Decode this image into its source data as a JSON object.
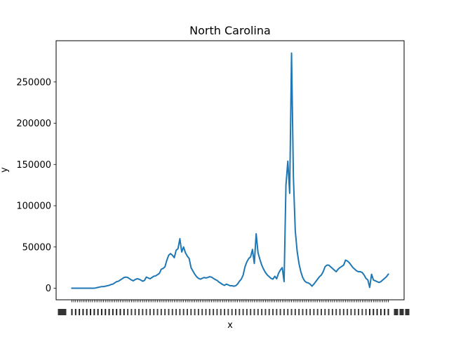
{
  "chart_data": {
    "type": "line",
    "title": "North Carolina",
    "xlabel": "x",
    "ylabel": "y",
    "ylim": [
      -14000,
      300000
    ],
    "yticks": [
      0,
      50000,
      100000,
      150000,
      200000,
      250000
    ],
    "ytick_labels": [
      "0",
      "50000",
      "100000",
      "150000",
      "200000",
      "250000"
    ],
    "grid": false,
    "legend": "none",
    "series_color": "#1f77b4",
    "x_tick_labels_legible": false,
    "series": [
      {
        "values": [
          0,
          0,
          0,
          0,
          0,
          0,
          0,
          0,
          0,
          0,
          0,
          0,
          0,
          500,
          1000,
          1500,
          2000,
          2000,
          2500,
          3000,
          3500,
          4500,
          5000,
          6500,
          8000,
          8500,
          10000,
          11500,
          13000,
          13500,
          13000,
          11500,
          10000,
          9000,
          10500,
          11500,
          11000,
          10000,
          8500,
          9500,
          13500,
          12500,
          11500,
          13000,
          14500,
          15000,
          16500,
          18000,
          23000,
          24000,
          26000,
          34000,
          40000,
          42000,
          40000,
          37000,
          46000,
          48000,
          60000,
          44000,
          50000,
          43000,
          39000,
          36000,
          25000,
          21000,
          17000,
          14000,
          12000,
          11000,
          12000,
          13000,
          12500,
          13000,
          14000,
          13500,
          12000,
          10500,
          9500,
          7500,
          6000,
          4500,
          3500,
          5000,
          4000,
          3000,
          3000,
          2500,
          3000,
          5000,
          8500,
          11000,
          16000,
          26000,
          32000,
          36000,
          38000,
          47000,
          30000,
          66000,
          43000,
          35000,
          28000,
          23000,
          19000,
          16000,
          14000,
          12000,
          11000,
          14500,
          11500,
          18000,
          22000,
          25000,
          8000,
          125000,
          154000,
          115000,
          285000,
          135000,
          70000,
          45000,
          30000,
          20000,
          13000,
          9000,
          7000,
          6500,
          5000,
          2500,
          5000,
          8000,
          11000,
          14000,
          16000,
          20000,
          26000,
          28000,
          28000,
          26000,
          24000,
          22000,
          20000,
          23000,
          25000,
          26500,
          28000,
          34000,
          33000,
          31000,
          28000,
          25000,
          23000,
          21000,
          20000,
          20000,
          19000,
          16000,
          12000,
          10000,
          1000,
          17000,
          10000,
          9000,
          8000,
          7000,
          8000,
          10000,
          12000,
          14000,
          17000
        ]
      }
    ]
  }
}
